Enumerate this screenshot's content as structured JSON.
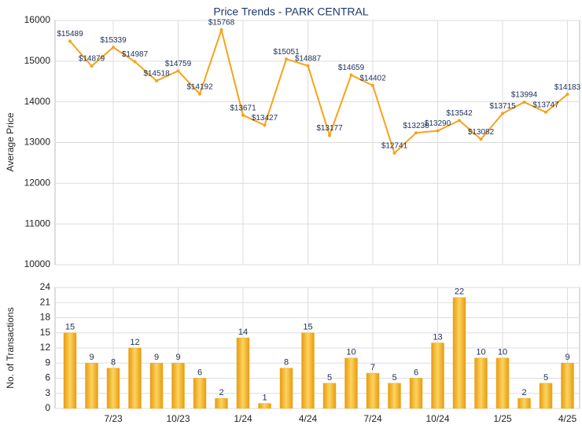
{
  "chart_data": [
    {
      "type": "line",
      "title": "Price Trends - PARK CENTRAL",
      "ylabel": "Average Price",
      "color": "#f5a31a",
      "categories": [
        null,
        null,
        "7/23",
        null,
        null,
        "10/23",
        null,
        null,
        "1/24",
        null,
        null,
        "4/24",
        null,
        null,
        "7/24",
        null,
        null,
        "10/24",
        null,
        null,
        "1/25",
        null,
        null,
        "4/25"
      ],
      "values": [
        15489,
        14879,
        15339,
        14987,
        14518,
        14759,
        14192,
        15768,
        13671,
        13427,
        15051,
        14887,
        13177,
        14659,
        14402,
        12741,
        13238,
        13290,
        13542,
        13082,
        13715,
        13994,
        13747,
        14183
      ],
      "value_labels": [
        "$15489",
        "$14879",
        "$15339",
        "$14987",
        "$14518",
        "$14759",
        "$14192",
        "$15768",
        "$13671",
        "$13427",
        "$15051",
        "$14887",
        "$13177",
        "$14659",
        "$14402",
        "$12741",
        "$13238",
        "$13290",
        "$13542",
        "$13082",
        "$13715",
        "$13994",
        "$13747",
        "$14183"
      ],
      "ylim": [
        10000,
        16000
      ],
      "yticks": [
        10000,
        11000,
        12000,
        13000,
        14000,
        15000,
        16000
      ],
      "grid": true
    },
    {
      "type": "bar",
      "ylabel": "No. of Transactions",
      "color": "#f0b020",
      "categories": [
        null,
        null,
        "7/23",
        null,
        null,
        "10/23",
        null,
        null,
        "1/24",
        null,
        null,
        "4/24",
        null,
        null,
        "7/24",
        null,
        null,
        "10/24",
        null,
        null,
        "1/25",
        null,
        null,
        "4/25"
      ],
      "values": [
        15,
        9,
        8,
        12,
        9,
        9,
        6,
        2,
        14,
        1,
        8,
        15,
        5,
        10,
        7,
        5,
        6,
        13,
        22,
        10,
        10,
        2,
        5,
        9
      ],
      "ylim": [
        0,
        24
      ],
      "yticks": [
        0,
        3,
        6,
        9,
        12,
        15,
        18,
        21,
        24
      ],
      "grid": true
    }
  ]
}
